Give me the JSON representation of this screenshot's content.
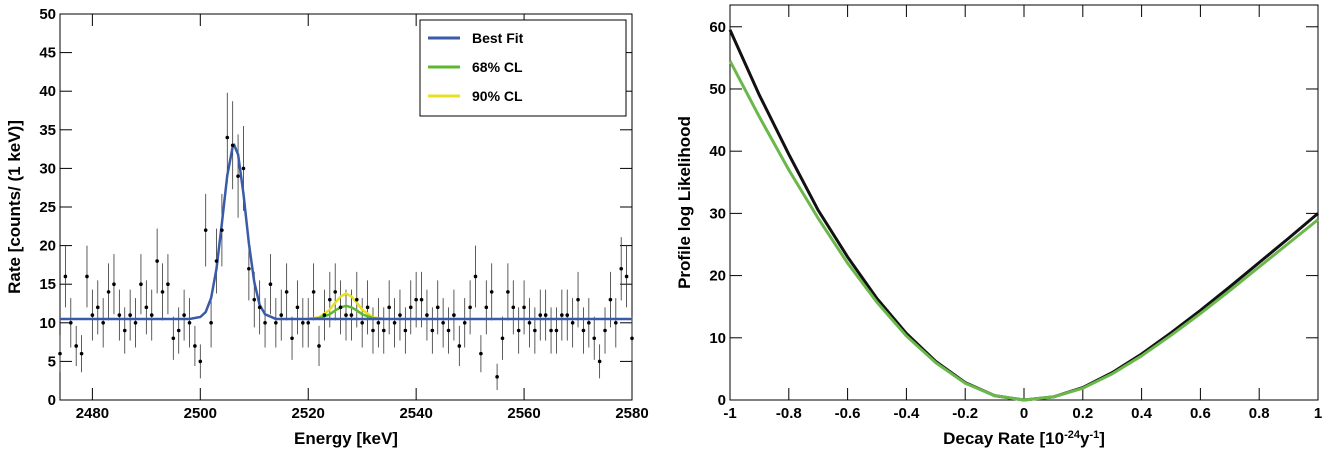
{
  "chart_data": [
    {
      "type": "scatter",
      "xlabel": "Energy [keV]",
      "ylabel": "Rate [counts/ (1 keV)]",
      "xlim": [
        2474,
        2580
      ],
      "xticks": [
        2480,
        2500,
        2520,
        2540,
        2560,
        2580
      ],
      "ylim": [
        0,
        50
      ],
      "yticks": [
        0,
        5,
        10,
        15,
        20,
        25,
        30,
        35,
        40,
        45,
        50
      ],
      "legend": "upper right",
      "points": {
        "color": "#000000",
        "x": [
          2474,
          2475,
          2476,
          2477,
          2478,
          2479,
          2480,
          2481,
          2482,
          2483,
          2484,
          2485,
          2486,
          2487,
          2488,
          2489,
          2490,
          2491,
          2492,
          2493,
          2494,
          2495,
          2496,
          2497,
          2498,
          2499,
          2500,
          2501,
          2502,
          2503,
          2504,
          2505,
          2506,
          2507,
          2508,
          2509,
          2510,
          2511,
          2512,
          2513,
          2514,
          2515,
          2516,
          2517,
          2518,
          2519,
          2520,
          2521,
          2522,
          2523,
          2524,
          2525,
          2526,
          2527,
          2528,
          2529,
          2530,
          2531,
          2532,
          2533,
          2534,
          2535,
          2536,
          2537,
          2538,
          2539,
          2540,
          2541,
          2542,
          2543,
          2544,
          2545,
          2546,
          2547,
          2548,
          2549,
          2550,
          2551,
          2552,
          2553,
          2554,
          2555,
          2556,
          2557,
          2558,
          2559,
          2560,
          2561,
          2562,
          2563,
          2564,
          2565,
          2566,
          2567,
          2568,
          2569,
          2570,
          2571,
          2572,
          2573,
          2574,
          2575,
          2576,
          2577,
          2578,
          2579,
          2580
        ],
        "values": [
          6,
          16,
          10,
          7,
          6,
          16,
          11,
          12,
          10,
          14,
          15,
          11,
          9,
          11,
          10,
          15,
          12,
          11,
          18,
          14,
          15,
          8,
          9,
          11,
          10,
          7,
          5,
          22,
          10,
          18,
          22,
          34,
          33,
          29,
          30,
          17,
          13,
          12,
          10,
          15,
          10,
          11,
          14,
          8,
          12,
          10,
          10,
          14,
          7,
          11,
          13,
          14,
          12,
          11,
          11,
          13,
          10,
          12,
          9,
          10,
          9,
          12,
          10,
          11,
          9,
          12,
          13,
          13,
          11,
          9,
          12,
          10,
          9,
          11,
          7,
          10,
          12,
          16,
          6,
          12,
          14,
          3,
          8,
          14,
          12,
          9,
          12,
          10,
          9,
          11,
          11,
          9,
          9,
          11,
          11,
          10,
          13,
          9,
          10,
          8,
          5,
          9,
          13,
          10,
          17,
          16,
          8
        ],
        "errors": [
          2.4,
          4,
          3.2,
          2.6,
          2.4,
          4,
          3.3,
          3.5,
          3.2,
          3.7,
          3.9,
          3.3,
          3,
          3.3,
          3.2,
          3.9,
          3.5,
          3.3,
          4.2,
          3.7,
          3.9,
          2.8,
          3,
          3.3,
          3.2,
          2.6,
          2.2,
          4.7,
          3.2,
          4.2,
          4.7,
          5.8,
          5.7,
          5.4,
          5.5,
          4.1,
          3.6,
          3.5,
          3.2,
          3.9,
          3.2,
          3.3,
          3.7,
          2.8,
          3.5,
          3.2,
          3.2,
          3.7,
          2.6,
          3.3,
          3.6,
          3.7,
          3.5,
          3.3,
          3.3,
          3.6,
          3.2,
          3.5,
          3,
          3.2,
          3,
          3.5,
          3.2,
          3.3,
          3,
          3.5,
          3.6,
          3.6,
          3.3,
          3,
          3.5,
          3.2,
          3,
          3.3,
          2.6,
          3.2,
          3.5,
          4,
          2.4,
          3.5,
          3.7,
          1.7,
          2.8,
          3.7,
          3.5,
          3,
          3.5,
          3.2,
          3,
          3.3,
          3.3,
          3,
          3,
          3.3,
          3.3,
          3.2,
          3.6,
          3,
          3.2,
          2.8,
          2.2,
          3,
          3.6,
          3.2,
          4.1,
          4,
          2.8
        ]
      },
      "series": [
        {
          "name": "Best Fit",
          "color": "#3a5ba8",
          "x": [
            2474,
            2498,
            2500,
            2501,
            2502,
            2503,
            2504,
            2505,
            2506,
            2506.3,
            2507,
            2508,
            2509,
            2510,
            2511,
            2512,
            2514,
            2580
          ],
          "values": [
            10.5,
            10.5,
            10.75,
            11.4,
            13.2,
            17,
            22.9,
            29.1,
            32.8,
            33,
            31.8,
            26.7,
            20.3,
            15.3,
            12.3,
            11.1,
            10.5,
            10.5
          ]
        },
        {
          "name": "68% CL",
          "color": "#5cb82e",
          "x": [
            2520,
            2522,
            2524,
            2525,
            2526,
            2527,
            2528,
            2529,
            2530,
            2532,
            2534
          ],
          "values": [
            10.5,
            10.6,
            11.1,
            11.6,
            12,
            12.2,
            12,
            11.6,
            11.1,
            10.6,
            10.5
          ]
        },
        {
          "name": "90% CL",
          "color": "#e8e020",
          "x": [
            2520,
            2522,
            2524,
            2525,
            2526,
            2527,
            2528,
            2529,
            2530,
            2532,
            2534
          ],
          "values": [
            10.5,
            10.7,
            11.7,
            12.6,
            13.4,
            13.8,
            13.4,
            12.6,
            11.7,
            10.7,
            10.5
          ]
        }
      ]
    },
    {
      "type": "line",
      "xlabel_parts": [
        "Decay Rate [10",
        "-24",
        "y",
        "-1",
        "]"
      ],
      "ylabel": "Profile log Likelihood",
      "xlim": [
        -1,
        1
      ],
      "xticks": [
        -1,
        -0.8,
        -0.6,
        -0.4,
        -0.2,
        0,
        0.2,
        0.4,
        0.6,
        0.8,
        1
      ],
      "ylim": [
        0,
        63.5
      ],
      "yticks": [
        0,
        10,
        20,
        30,
        40,
        50,
        60
      ],
      "x": [
        -1,
        -0.9,
        -0.8,
        -0.7,
        -0.6,
        -0.5,
        -0.4,
        -0.3,
        -0.2,
        -0.1,
        0,
        0.1,
        0.2,
        0.3,
        0.4,
        0.5,
        0.6,
        0.7,
        0.8,
        0.9,
        1
      ],
      "series": [
        {
          "color": "#111111",
          "values": [
            59.5,
            49,
            39.5,
            30.5,
            23,
            16.3,
            10.7,
            6.2,
            2.8,
            0.7,
            0,
            0.5,
            2,
            4.4,
            7.4,
            10.8,
            14.4,
            18.2,
            22.1,
            26,
            30
          ]
        },
        {
          "color": "#6ab84a",
          "values": [
            54.5,
            45.5,
            37,
            29.2,
            22,
            15.7,
            10.3,
            6,
            2.7,
            0.7,
            0,
            0.5,
            1.9,
            4.2,
            7.1,
            10.4,
            13.9,
            17.6,
            21.4,
            25.2,
            29
          ]
        }
      ]
    }
  ]
}
